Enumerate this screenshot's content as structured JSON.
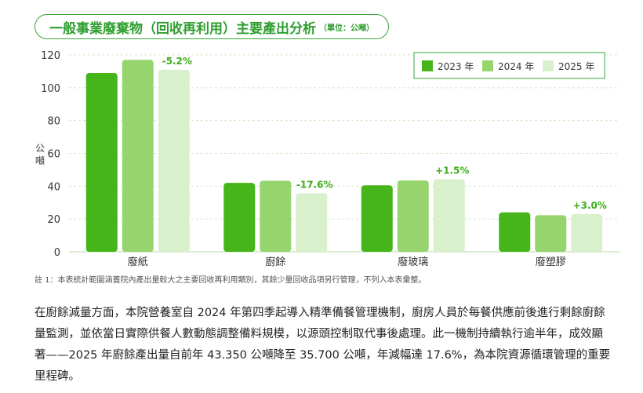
{
  "title": "一般事業廢棄物（回收再利用）主要產出分析",
  "title_unit": "（單位：公噸）",
  "chart_data": {
    "type": "bar",
    "title": "一般事業廢棄物（回收再利用）主要產出分析",
    "ylabel": "公噸",
    "ylim": [
      0,
      120
    ],
    "yticks": [
      0,
      20,
      40,
      60,
      80,
      100,
      120
    ],
    "grid": true,
    "legend_position": "top-right",
    "categories": [
      "廢紙",
      "廚餘",
      "廢玻璃",
      "廢塑膠"
    ],
    "series": [
      {
        "name": "2023 年",
        "color": "#45b51a",
        "values": [
          109,
          42,
          40.5,
          24
        ]
      },
      {
        "name": "2024 年",
        "color": "#96d56e",
        "values": [
          117,
          43.35,
          43.5,
          22.3
        ]
      },
      {
        "name": "2025 年",
        "color": "#d9f0cc",
        "values": [
          111,
          35.7,
          44.2,
          23
        ]
      }
    ],
    "annotations": [
      "-5.2%",
      "-17.6%",
      "+1.5%",
      "+3.0%"
    ]
  },
  "footnote": "註 1：本表統計範圍涵蓋院內產出量較大之主要回收再利用類別，其餘少量回收品項另行管理，不列入本表彙整。",
  "paragraph": "在廚餘減量方面，本院營養室自 2024 年第四季起導入精準備餐管理機制，廚房人員於每餐供應前後進行剩餘廚餘量監測，並依當日實際供餐人數動態調整備料規模，以源頭控制取代事後處理。此一機制持續執行逾半年，成效顯著——2025 年廚餘產出量自前年 43.350 公噸降至 35.700 公噸，年減幅達 17.6%，為本院資源循環管理的重要里程碑。",
  "colors": {
    "accent": "#2f9e2f",
    "annotation": "#3cad19",
    "grid": "#cfe8c2"
  }
}
